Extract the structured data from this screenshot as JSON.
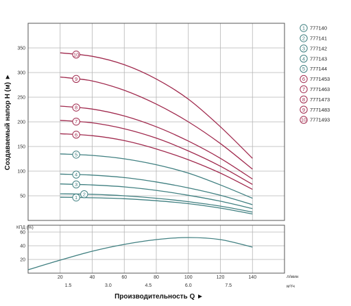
{
  "chart_data": [
    {
      "type": "line",
      "ylabel": "Создаваемый напор H (м) ►",
      "xlabel": "Производительность Q ►",
      "x_unit_primary": "л/мин",
      "x_unit_secondary": "м³/ч",
      "xlim": [
        0,
        160
      ],
      "ylim": [
        0,
        400
      ],
      "x_ticks": [
        "20",
        "40",
        "60",
        "80",
        "100",
        "120",
        "140"
      ],
      "x_ticks_secondary": [
        "1.5",
        "3.0",
        "4.5",
        "6.0",
        "7.5"
      ],
      "y_ticks": [
        "50",
        "100",
        "150",
        "200",
        "250",
        "300",
        "350"
      ],
      "grid": true,
      "legend_position": "right",
      "series": [
        {
          "name": "777140",
          "label": "1",
          "color": "#3f7f80",
          "x": [
            20,
            40,
            60,
            80,
            100,
            120,
            140
          ],
          "values": [
            47,
            46,
            44,
            40,
            34,
            25,
            13
          ]
        },
        {
          "name": "777141",
          "label": "2",
          "color": "#3f7f80",
          "x": [
            20,
            40,
            60,
            80,
            100,
            120,
            140
          ],
          "values": [
            54,
            53,
            50,
            45,
            38,
            29,
            17
          ]
        },
        {
          "name": "777142",
          "label": "3",
          "color": "#3f7f80",
          "x": [
            20,
            40,
            60,
            80,
            100,
            120,
            140
          ],
          "values": [
            74,
            72,
            68,
            61,
            51,
            39,
            24
          ]
        },
        {
          "name": "777143",
          "label": "4",
          "color": "#3f7f80",
          "x": [
            20,
            40,
            60,
            80,
            100,
            120,
            140
          ],
          "values": [
            94,
            92,
            87,
            78,
            66,
            51,
            32
          ]
        },
        {
          "name": "777144",
          "label": "5",
          "color": "#3f7f80",
          "x": [
            20,
            40,
            60,
            80,
            100,
            120,
            140
          ],
          "values": [
            135,
            132,
            125,
            113,
            96,
            72,
            45
          ]
        },
        {
          "name": "7771453",
          "label": "6",
          "color": "#a0294d",
          "x": [
            20,
            40,
            60,
            80,
            100,
            120,
            140
          ],
          "values": [
            176,
            172,
            162,
            145,
            123,
            96,
            63
          ]
        },
        {
          "name": "7771463",
          "label": "7",
          "color": "#a0294d",
          "x": [
            20,
            40,
            60,
            80,
            100,
            120,
            140
          ],
          "values": [
            203,
            198,
            186,
            167,
            141,
            110,
            73
          ]
        },
        {
          "name": "7771473",
          "label": "8",
          "color": "#a0294d",
          "x": [
            20,
            40,
            60,
            80,
            100,
            120,
            140
          ],
          "values": [
            232,
            226,
            212,
            190,
            161,
            126,
            84
          ]
        },
        {
          "name": "7771483",
          "label": "9",
          "color": "#a0294d",
          "x": [
            20,
            40,
            60,
            80,
            100,
            120,
            140
          ],
          "values": [
            291,
            283,
            264,
            236,
            200,
            156,
            104
          ]
        },
        {
          "name": "7771493",
          "label": "10",
          "color": "#a0294d",
          "x": [
            20,
            40,
            60,
            80,
            100,
            120,
            140
          ],
          "values": [
            340,
            333,
            316,
            287,
            246,
            190,
            126
          ]
        }
      ],
      "curve_label_x": [
        30,
        35,
        30,
        30,
        30,
        30,
        30,
        30,
        30,
        30
      ]
    },
    {
      "type": "line",
      "ylabel": "КПД (%)",
      "xlim": [
        0,
        160
      ],
      "ylim": [
        0,
        70
      ],
      "x_ticks": [
        "20",
        "40",
        "60",
        "80",
        "100",
        "120",
        "140"
      ],
      "y_ticks": [
        "20",
        "40",
        "60"
      ],
      "grid": true,
      "series": [
        {
          "color": "#3f7f80",
          "x": [
            0,
            20,
            40,
            60,
            80,
            100,
            120,
            140
          ],
          "values": [
            5,
            19,
            32,
            42,
            49,
            52,
            49,
            38
          ]
        }
      ]
    }
  ]
}
